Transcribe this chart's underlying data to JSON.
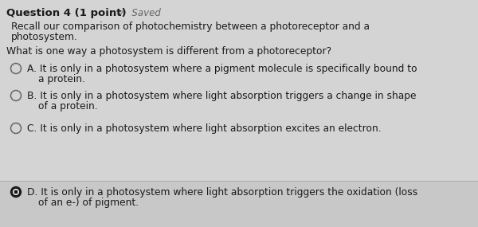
{
  "title": "Question 4 (1 point)",
  "saved_text": "✓  Saved",
  "prompt1": "Recall our comparison of photochemistry between a photoreceptor and a",
  "prompt2": "photosystem.",
  "question": "What is one way a photosystem is different from a photoreceptor?",
  "options": [
    {
      "label": "A.",
      "line1": "It is only in a photosystem where a pigment molecule is specifically bound to",
      "line2": "a protein.",
      "selected": false
    },
    {
      "label": "B.",
      "line1": "It is only in a photosystem where light absorption triggers a change in shape",
      "line2": "of a protein.",
      "selected": false
    },
    {
      "label": "C.",
      "line1": "It is only in a photosystem where light absorption excites an electron.",
      "line2": null,
      "selected": false
    },
    {
      "label": "D.",
      "line1": "It is only in a photosystem where light absorption triggers the oxidation (loss",
      "line2": "of an e-) of pigment.",
      "selected": true
    }
  ],
  "bg_color": "#d4d4d4",
  "selected_bg_color": "#c8c8c8",
  "divider_color": "#b0b0b0",
  "text_color": "#1a1a1a",
  "saved_color": "#666666",
  "circle_color": "#666666",
  "font_size_title": 9.5,
  "font_size_saved": 8.5,
  "font_size_body": 8.8,
  "font_size_option": 8.8
}
